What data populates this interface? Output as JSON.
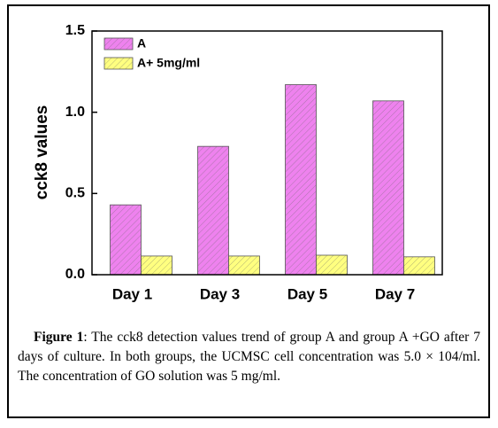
{
  "chart_data": {
    "type": "bar",
    "ylabel": "cck8 values",
    "categories": [
      "Day 1",
      "Day 3",
      "Day 5",
      "Day 7"
    ],
    "series": [
      {
        "name": "A",
        "color": "#ee82ee",
        "values": [
          0.43,
          0.79,
          1.17,
          1.07
        ]
      },
      {
        "name": "A+ 5mg/ml",
        "color": "#ffff80",
        "values": [
          0.115,
          0.115,
          0.12,
          0.11
        ]
      }
    ],
    "ylim": [
      0,
      1.5
    ],
    "yticks": [
      {
        "value": 0,
        "label": "0.0"
      },
      0.5,
      {
        "value": 1,
        "label": "1.0"
      },
      {
        "value": 1.5,
        "label": "1.5"
      }
    ],
    "legend": "upper left",
    "caption_label": "Figure 1",
    "caption": ": The cck8 detection values trend of group A and group A +GO after 7 days of culture. In both groups, the UCMSC cell concentration was 5.0 × 104/ml. The concentration of GO solution was 5 mg/ml."
  }
}
